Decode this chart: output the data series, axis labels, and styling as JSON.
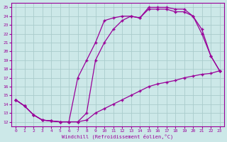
{
  "xlabel": "Windchill (Refroidissement éolien,°C)",
  "bg_color": "#cce8e8",
  "line_color": "#990099",
  "grid_color": "#aacccc",
  "xlim": [
    -0.5,
    23.5
  ],
  "ylim": [
    11.5,
    25.5
  ],
  "yticks": [
    12,
    13,
    14,
    15,
    16,
    17,
    18,
    19,
    20,
    21,
    22,
    23,
    24,
    25
  ],
  "xticks": [
    0,
    1,
    2,
    3,
    4,
    5,
    6,
    7,
    8,
    9,
    10,
    11,
    12,
    13,
    14,
    15,
    16,
    17,
    18,
    19,
    20,
    21,
    22,
    23
  ],
  "curve1_x": [
    0,
    1,
    2,
    3,
    4,
    5,
    6,
    7,
    8,
    9,
    10,
    11,
    12,
    13,
    14,
    15,
    16,
    17,
    18,
    19,
    20,
    21,
    22,
    23
  ],
  "curve1_y": [
    14.5,
    13.8,
    12.8,
    12.2,
    12.1,
    12.0,
    12.0,
    12.0,
    12.2,
    13.0,
    13.5,
    14.0,
    14.5,
    15.0,
    15.5,
    16.0,
    16.3,
    16.5,
    16.7,
    17.0,
    17.2,
    17.4,
    17.5,
    17.8
  ],
  "curve2_x": [
    0,
    1,
    2,
    3,
    4,
    5,
    6,
    7,
    8,
    9,
    10,
    11,
    12,
    13,
    14,
    15,
    16,
    17,
    18,
    19,
    20,
    21,
    22,
    23
  ],
  "curve2_y": [
    14.5,
    13.8,
    12.8,
    12.2,
    12.1,
    12.0,
    12.0,
    12.0,
    13.0,
    19.0,
    21.0,
    22.5,
    23.5,
    24.0,
    23.8,
    24.8,
    24.8,
    24.8,
    24.5,
    24.5,
    24.0,
    22.5,
    19.5,
    17.8
  ],
  "curve3_x": [
    0,
    1,
    2,
    3,
    4,
    5,
    6,
    7,
    8,
    9,
    10,
    11,
    12,
    13,
    14,
    15,
    16,
    17,
    18,
    19,
    20,
    21,
    22,
    23
  ],
  "curve3_y": [
    14.5,
    13.8,
    12.8,
    12.2,
    12.1,
    12.0,
    12.0,
    17.0,
    19.0,
    21.0,
    23.5,
    23.8,
    24.0,
    24.0,
    23.8,
    25.0,
    25.0,
    25.0,
    24.8,
    24.8,
    24.0,
    22.0,
    19.5,
    17.8
  ]
}
